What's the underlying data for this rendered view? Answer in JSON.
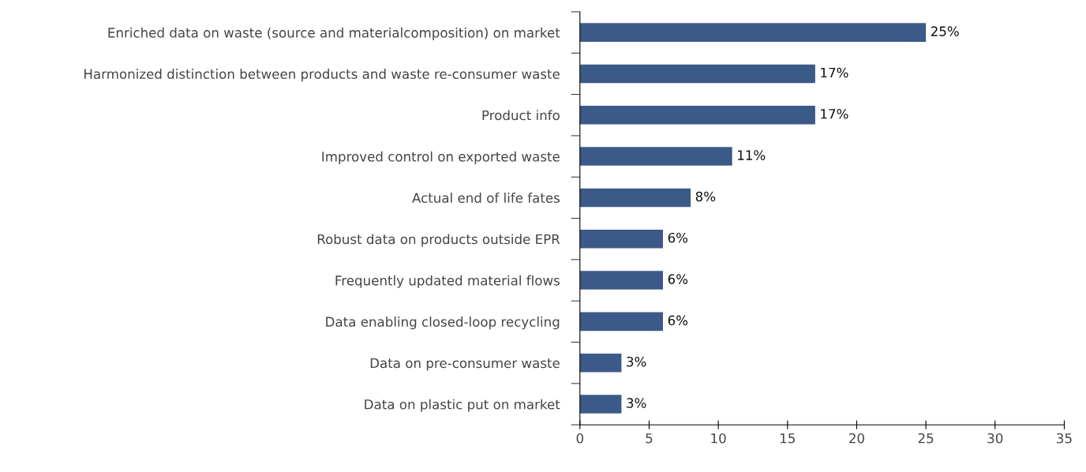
{
  "chart_data": {
    "type": "bar",
    "orientation": "horizontal",
    "categories": [
      "Enriched data on waste (source and materialcomposition) on market",
      "Harmonized distinction between products and waste re-consumer waste",
      "Product info",
      "Improved control on exported waste",
      "Actual end of life fates",
      "Robust data on products outside EPR",
      "Frequently updated material flows",
      "Data enabling closed-loop recycling",
      "Data on pre-consumer waste",
      "Data on plastic put on market"
    ],
    "values": [
      25,
      17,
      17,
      11,
      8,
      6,
      6,
      6,
      3,
      3
    ],
    "value_labels": [
      "25%",
      "17%",
      "17%",
      "11%",
      "8%",
      "6%",
      "6%",
      "6%",
      "3%",
      "3%"
    ],
    "color": "#3b5a88",
    "xlim": [
      0,
      35
    ],
    "xticks": [
      0,
      5,
      10,
      15,
      20,
      25,
      30,
      35
    ],
    "grid": false
  }
}
